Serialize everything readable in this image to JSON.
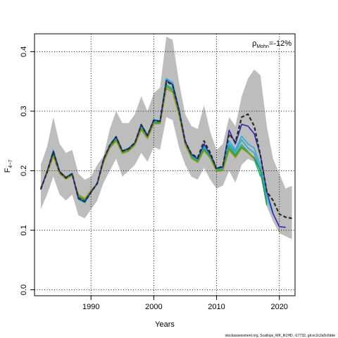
{
  "chart_data": {
    "type": "line",
    "title": "",
    "xlabel": "Years",
    "ylabel_main": "F",
    "ylabel_sub": "4−7",
    "annotation": {
      "rho_symbol": "ρ",
      "rho_sub": "Mohn",
      "rho_value": "=-12%"
    },
    "footer": "stockassessment.org, Scallops_WK_fit1HD, r17732, git:ec2c2a0c6dde",
    "xlim": [
      1981,
      2022.5
    ],
    "ylim": [
      -0.01,
      0.43
    ],
    "xticks": [
      1990,
      2000,
      2010,
      2020
    ],
    "yticks": [
      0.0,
      0.1,
      0.2,
      0.3,
      0.4
    ],
    "ytick_labels": [
      "0.0",
      "0.1",
      "0.2",
      "0.3",
      "0.4"
    ],
    "grid": true,
    "band": {
      "x": [
        1982,
        1983,
        1984,
        1985,
        1986,
        1987,
        1988,
        1989,
        1990,
        1991,
        1992,
        1993,
        1994,
        1995,
        1996,
        1997,
        1998,
        1999,
        2000,
        2001,
        2002,
        2003,
        2004,
        2005,
        2006,
        2007,
        2008,
        2009,
        2010,
        2011,
        2012,
        2013,
        2014,
        2015,
        2016,
        2017,
        2018,
        2019,
        2020,
        2021,
        2022
      ],
      "upper": [
        0.21,
        0.24,
        0.29,
        0.245,
        0.23,
        0.235,
        0.195,
        0.185,
        0.19,
        0.21,
        0.225,
        0.27,
        0.3,
        0.28,
        0.28,
        0.295,
        0.325,
        0.3,
        0.33,
        0.34,
        0.425,
        0.42,
        0.35,
        0.295,
        0.275,
        0.27,
        0.31,
        0.265,
        0.235,
        0.245,
        0.29,
        0.275,
        0.325,
        0.355,
        0.37,
        0.36,
        0.275,
        0.22,
        0.195,
        0.17,
        0.175
      ],
      "lower": [
        0.135,
        0.16,
        0.19,
        0.16,
        0.15,
        0.16,
        0.125,
        0.12,
        0.135,
        0.15,
        0.18,
        0.2,
        0.22,
        0.19,
        0.2,
        0.21,
        0.23,
        0.215,
        0.24,
        0.235,
        0.29,
        0.285,
        0.24,
        0.21,
        0.19,
        0.185,
        0.205,
        0.185,
        0.17,
        0.175,
        0.2,
        0.18,
        0.21,
        0.22,
        0.215,
        0.19,
        0.14,
        0.115,
        0.095,
        0.09,
        0.085
      ]
    },
    "series": [
      {
        "color": "#3ca0c8",
        "width": 1.6,
        "x": [
          1982,
          1983,
          1984,
          1985,
          1986,
          1987,
          1988,
          1989,
          1990,
          1991,
          1992,
          1993,
          1994,
          1995,
          1996,
          1997,
          1998,
          1999,
          2000,
          2001,
          2002,
          2003,
          2004,
          2005,
          2006,
          2007,
          2008,
          2009,
          2010,
          2011,
          2012,
          2013,
          2014,
          2015,
          2016,
          2017,
          2018
        ],
        "values": [
          0.168,
          0.198,
          0.233,
          0.198,
          0.188,
          0.195,
          0.152,
          0.147,
          0.163,
          0.178,
          0.218,
          0.242,
          0.256,
          0.232,
          0.236,
          0.246,
          0.276,
          0.258,
          0.284,
          0.282,
          0.352,
          0.344,
          0.302,
          0.248,
          0.226,
          0.219,
          0.24,
          0.226,
          0.203,
          0.205,
          0.245,
          0.232,
          0.252,
          0.238,
          0.23,
          0.2,
          0.145
        ]
      },
      {
        "color": "#1eb4e6",
        "width": 1.6,
        "x": [
          1982,
          1983,
          1984,
          1985,
          1986,
          1987,
          1988,
          1989,
          1990,
          1991,
          1992,
          1993,
          1994,
          1995,
          1996,
          1997,
          1998,
          1999,
          2000,
          2001,
          2002,
          2003,
          2004,
          2005,
          2006,
          2007,
          2008,
          2009,
          2010,
          2011,
          2012,
          2013,
          2014,
          2015,
          2016,
          2017,
          2018,
          2019
        ],
        "values": [
          0.168,
          0.199,
          0.235,
          0.199,
          0.189,
          0.196,
          0.152,
          0.146,
          0.163,
          0.179,
          0.219,
          0.243,
          0.258,
          0.234,
          0.238,
          0.248,
          0.278,
          0.26,
          0.286,
          0.284,
          0.355,
          0.348,
          0.305,
          0.25,
          0.228,
          0.221,
          0.242,
          0.228,
          0.205,
          0.207,
          0.25,
          0.235,
          0.258,
          0.245,
          0.238,
          0.208,
          0.155,
          0.127
        ]
      },
      {
        "color": "#20b090",
        "width": 1.6,
        "x": [
          1982,
          1983,
          1984,
          1985,
          1986,
          1987,
          1988,
          1989,
          1990,
          1991,
          1992,
          1993,
          1994,
          1995,
          1996,
          1997,
          1998,
          1999,
          2000,
          2001,
          2002,
          2003,
          2004,
          2005,
          2006,
          2007,
          2008,
          2009,
          2010,
          2011,
          2012,
          2013,
          2014,
          2015,
          2016,
          2017
        ],
        "values": [
          0.17,
          0.197,
          0.228,
          0.197,
          0.188,
          0.194,
          0.155,
          0.149,
          0.165,
          0.178,
          0.216,
          0.24,
          0.254,
          0.231,
          0.235,
          0.245,
          0.273,
          0.256,
          0.282,
          0.281,
          0.345,
          0.338,
          0.298,
          0.246,
          0.224,
          0.217,
          0.238,
          0.224,
          0.201,
          0.203,
          0.242,
          0.228,
          0.244,
          0.232,
          0.22,
          0.19
        ]
      },
      {
        "color": "#2a9a30",
        "width": 1.6,
        "x": [
          1982,
          1983,
          1984,
          1985,
          1986,
          1987,
          1988,
          1989,
          1990,
          1991,
          1992,
          1993,
          1994,
          1995,
          1996,
          1997,
          1998,
          1999,
          2000,
          2001,
          2002,
          2003,
          2004,
          2005,
          2006,
          2007,
          2008,
          2009,
          2010,
          2011,
          2012,
          2013,
          2014,
          2015,
          2016,
          2017,
          2018
        ],
        "values": [
          0.171,
          0.196,
          0.226,
          0.196,
          0.187,
          0.193,
          0.157,
          0.151,
          0.166,
          0.178,
          0.215,
          0.239,
          0.252,
          0.23,
          0.234,
          0.244,
          0.271,
          0.255,
          0.28,
          0.28,
          0.342,
          0.335,
          0.296,
          0.245,
          0.222,
          0.215,
          0.236,
          0.222,
          0.2,
          0.201,
          0.238,
          0.225,
          0.24,
          0.23,
          0.222,
          0.2,
          0.142
        ]
      },
      {
        "color": "#8c9a10",
        "width": 1.6,
        "x": [
          1982,
          1983,
          1984,
          1985,
          1986,
          1987,
          1988,
          1989,
          1990,
          1991,
          1992,
          1993,
          1994,
          1995,
          1996,
          1997,
          1998,
          1999,
          2000,
          2001,
          2002,
          2003,
          2004,
          2005,
          2006,
          2007,
          2008,
          2009,
          2010,
          2011,
          2012,
          2013,
          2014,
          2015,
          2016
        ],
        "values": [
          0.172,
          0.195,
          0.224,
          0.195,
          0.186,
          0.192,
          0.16,
          0.153,
          0.167,
          0.178,
          0.214,
          0.238,
          0.25,
          0.229,
          0.233,
          0.243,
          0.269,
          0.254,
          0.279,
          0.279,
          0.338,
          0.332,
          0.294,
          0.244,
          0.221,
          0.214,
          0.234,
          0.221,
          0.199,
          0.2,
          0.235,
          0.222,
          0.238,
          0.23,
          0.22
        ]
      },
      {
        "color": "#2a2ab4",
        "width": 1.6,
        "x": [
          1982,
          1983,
          1984,
          1985,
          1986,
          1987,
          1988,
          1989,
          1990,
          1991,
          1992,
          1993,
          1994,
          1995,
          1996,
          1997,
          1998,
          1999,
          2000,
          2001,
          2002,
          2003,
          2004,
          2005,
          2006,
          2007,
          2008,
          2009,
          2010,
          2011,
          2012,
          2013,
          2014,
          2015,
          2016,
          2017,
          2018,
          2019,
          2020,
          2021
        ],
        "values": [
          0.169,
          0.199,
          0.232,
          0.199,
          0.189,
          0.195,
          0.153,
          0.148,
          0.164,
          0.179,
          0.219,
          0.243,
          0.257,
          0.233,
          0.237,
          0.247,
          0.278,
          0.259,
          0.285,
          0.283,
          0.352,
          0.345,
          0.303,
          0.249,
          0.227,
          0.22,
          0.245,
          0.227,
          0.204,
          0.206,
          0.268,
          0.245,
          0.278,
          0.275,
          0.262,
          0.225,
          0.165,
          0.128,
          0.106,
          0.105
        ]
      },
      {
        "color": "#2a2a2a",
        "width": 2.2,
        "dashed": true,
        "x": [
          1982,
          1983,
          1984,
          1985,
          1986,
          1987,
          1988,
          1989,
          1990,
          1991,
          1992,
          1993,
          1994,
          1995,
          1996,
          1997,
          1998,
          1999,
          2000,
          2001,
          2002,
          2003,
          2004,
          2005,
          2006,
          2007,
          2008,
          2009,
          2010,
          2011,
          2012,
          2013,
          2014,
          2015,
          2016,
          2017,
          2018,
          2019,
          2020,
          2021,
          2022
        ],
        "values": [
          0.169,
          0.198,
          0.232,
          0.198,
          0.188,
          0.195,
          0.154,
          0.148,
          0.164,
          0.179,
          0.219,
          0.243,
          0.257,
          0.233,
          0.237,
          0.247,
          0.277,
          0.259,
          0.285,
          0.283,
          0.35,
          0.344,
          0.302,
          0.249,
          0.228,
          0.222,
          0.25,
          0.23,
          0.203,
          0.208,
          0.262,
          0.248,
          0.29,
          0.295,
          0.275,
          0.225,
          0.165,
          0.15,
          0.127,
          0.122,
          0.12
        ]
      }
    ]
  }
}
